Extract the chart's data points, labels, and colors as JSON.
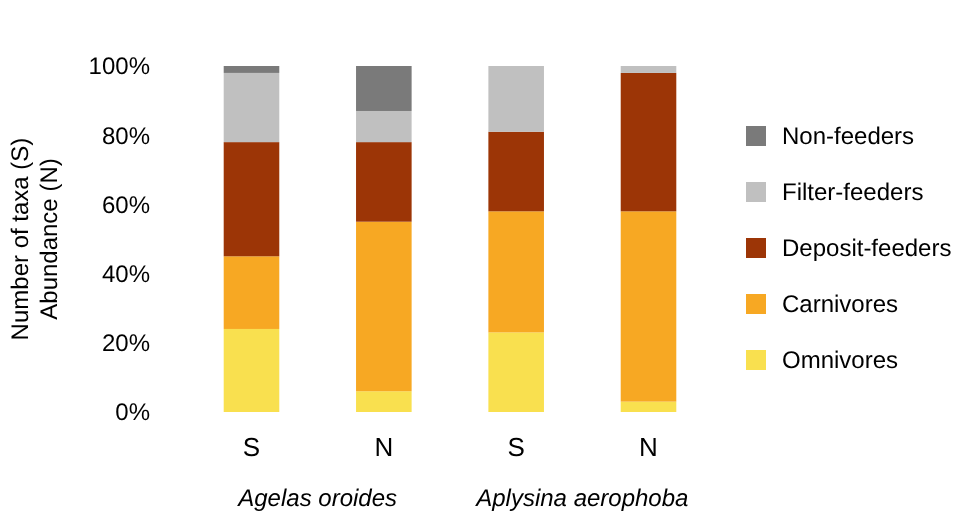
{
  "chart_data": {
    "type": "bar",
    "stacked": true,
    "ylabel": "Number of taxa (S)\nAbundance (N)",
    "categories": [
      "S",
      "N",
      "S",
      "N"
    ],
    "series": [
      {
        "name": "Omnivores",
        "color": "#f9e04f",
        "values": [
          24,
          6,
          23,
          3
        ]
      },
      {
        "name": "Carnivores",
        "color": "#f7a823",
        "values": [
          21,
          49,
          35,
          55
        ]
      },
      {
        "name": "Deposit-feeders",
        "color": "#9c3506",
        "values": [
          33,
          23,
          23,
          40
        ]
      },
      {
        "name": "Filter-feeders",
        "color": "#c0c0c0",
        "values": [
          20,
          9,
          19,
          2
        ]
      },
      {
        "name": "Non-feeders",
        "color": "#7a7a7a",
        "values": [
          2,
          13,
          0,
          0
        ]
      }
    ],
    "ylim": [
      0,
      100
    ],
    "yticks": [
      {
        "value": 0,
        "label": "0%"
      },
      {
        "value": 20,
        "label": "20%"
      },
      {
        "value": 40,
        "label": "40%"
      },
      {
        "value": 60,
        "label": "60%"
      },
      {
        "value": 80,
        "label": "80%"
      },
      {
        "value": 100,
        "label": "100%"
      }
    ],
    "annotations": [
      "Agelas oroides",
      "Aplysina aerophoba"
    ],
    "legend": "right",
    "grid": false
  }
}
